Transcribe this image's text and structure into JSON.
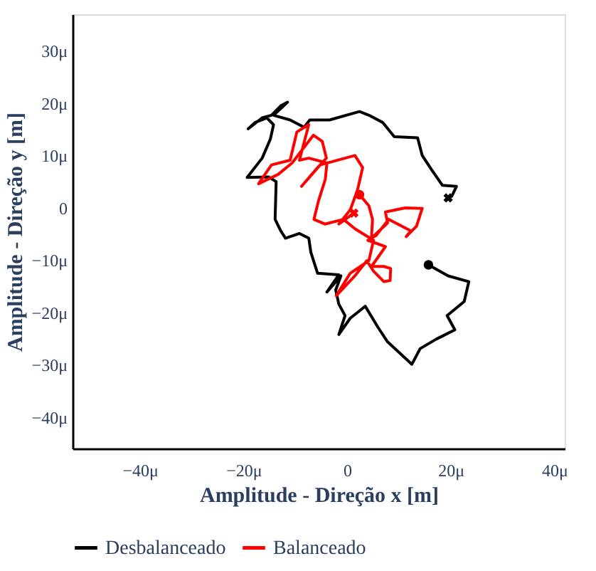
{
  "chart_data": {
    "type": "line",
    "xlabel": "Amplitude - Direção x [m]",
    "ylabel": "Amplitude - Direção y [m]",
    "legend": "bottom",
    "grid": false,
    "line_style": "solid",
    "xlim": [
      -53,
      42
    ],
    "ylim": [
      -46,
      37
    ],
    "xticks": [
      {
        "value": -40,
        "label": "−40μ"
      },
      {
        "value": -20,
        "label": "−20μ"
      },
      0,
      {
        "value": 20,
        "label": "20μ"
      },
      {
        "value": 40,
        "label": "40μ"
      }
    ],
    "yticks": [
      {
        "value": -40,
        "label": "−40μ"
      },
      {
        "value": -30,
        "label": "−30μ"
      },
      {
        "value": -20,
        "label": "−20μ"
      },
      {
        "value": -10,
        "label": "−10μ"
      },
      0,
      {
        "value": 10,
        "label": "10μ"
      },
      {
        "value": 20,
        "label": "20μ"
      },
      {
        "value": 30,
        "label": "30μ"
      }
    ],
    "series": [
      {
        "name": "Desbalanceado",
        "color": "#000000",
        "x": [
          15.7,
          19.5,
          23.5,
          22.6,
          19.3,
          20.8,
          17.2,
          14.1,
          12.5,
          7.8,
          6.0,
          3.5,
          0.6,
          -1.6,
          -0.4,
          -1.6,
          -2.2,
          -1.2,
          -3.9,
          -1.6,
          -5.7,
          -7.0,
          -7.4,
          -9.2,
          -11.9,
          -12.8,
          -13.9,
          -13.7,
          -15.1,
          -19.3,
          -16.4,
          -14.8,
          -14.2,
          -15.5,
          -17.8,
          -19.1,
          -16.4,
          -14.6,
          -12.8,
          -11.5,
          -14.2,
          -11.0,
          -8.3,
          -7.2,
          -3.4,
          2.4,
          4.2,
          6.9,
          9.1,
          13.6,
          14.5,
          16.3,
          18.4,
          21.1,
          20.2,
          19.5
        ],
        "values": [
          -10.9,
          -13.0,
          -14.1,
          -17.9,
          -20.6,
          -23.3,
          -25.1,
          -26.9,
          -29.9,
          -25.6,
          -22.9,
          -18.8,
          -21.1,
          -24.2,
          -20.6,
          -18.4,
          -15.7,
          -13.0,
          -16.1,
          -12.8,
          -12.5,
          -8.5,
          -5.8,
          -4.9,
          -5.8,
          -4.4,
          -2.2,
          5.0,
          5.9,
          5.8,
          9.5,
          13.2,
          15.9,
          17.2,
          16.3,
          15.1,
          17.2,
          17.7,
          19.5,
          20.2,
          17.7,
          16.8,
          15.4,
          16.8,
          16.8,
          18.4,
          17.7,
          16.3,
          13.6,
          13.4,
          10.0,
          7.3,
          4.3,
          4.1,
          2.2,
          1.9
        ]
      },
      {
        "name": "Balanceado",
        "color": "#ff0000",
        "x": [
          2.4,
          4.2,
          4.9,
          4.7,
          7.8,
          7.4,
          11.2,
          14.5,
          13.4,
          11.4,
          12.3,
          8.0,
          5.6,
          4.0,
          7.4,
          6.0,
          4.7,
          7.1,
          8.4,
          8.3,
          7.1,
          5.1,
          3.8,
          1.5,
          -2.1,
          0.6,
          4.2,
          5.1,
          1.5,
          -0.7,
          -4.3,
          -6.4,
          -5.5,
          -4.2,
          -3.9,
          -7.4,
          -9.2,
          -7.4,
          -9.7,
          -11.0,
          -14.6,
          -17.1,
          -13.3,
          -10.6,
          -6.5,
          -4.8,
          -4.0,
          -5.7,
          -8.8,
          -5.2,
          1.5,
          3.0,
          2.0,
          0.6,
          -1.6,
          1.3
        ],
        "values": [
          2.5,
          0.4,
          -2.2,
          -5.8,
          -2.9,
          -0.8,
          0.0,
          -0.1,
          -3.5,
          -5.5,
          -4.4,
          -2.2,
          -5.3,
          -6.2,
          -7.4,
          -9.4,
          -11.2,
          -11.2,
          -11.6,
          -13.9,
          -14.1,
          -12.1,
          -10.1,
          -13.0,
          -16.8,
          -12.5,
          -10.1,
          -6.2,
          -4.0,
          -2.2,
          -3.1,
          -2.2,
          1.4,
          5.5,
          8.6,
          9.5,
          9.1,
          15.9,
          14.5,
          9.1,
          8.2,
          4.6,
          6.4,
          8.6,
          13.9,
          12.7,
          9.5,
          7.7,
          4.1,
          8.2,
          10.0,
          7.7,
          3.4,
          -0.4,
          -3.1,
          -1.0
        ]
      },
      {
        "type": "scatter",
        "color": "#000000",
        "marker": "circle",
        "x": [
          15.7
        ],
        "values": [
          -10.9
        ]
      },
      {
        "type": "scatter",
        "color": "#000000",
        "marker": "cross",
        "x": [
          19.5
        ],
        "values": [
          1.9
        ]
      },
      {
        "type": "scatter",
        "color": "#ff0000",
        "marker": "circle",
        "x": [
          2.4
        ],
        "values": [
          2.5
        ]
      },
      {
        "type": "scatter",
        "color": "#ff0000",
        "marker": "cross",
        "x": [
          1.3
        ],
        "values": [
          -1.0
        ]
      }
    ]
  }
}
